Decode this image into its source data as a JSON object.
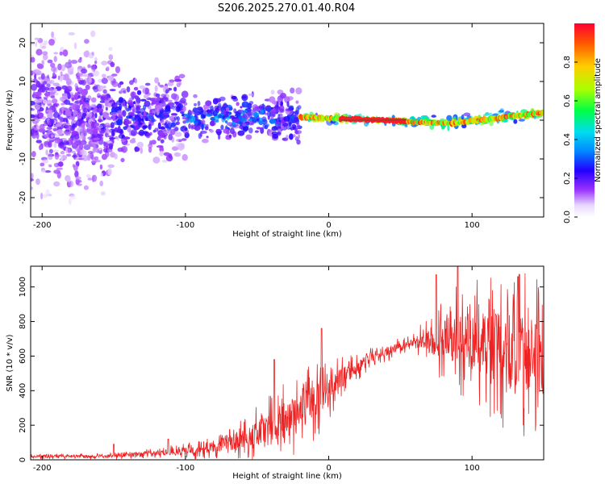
{
  "title": "S206.2025.270.01.40.R04",
  "chart_data": [
    {
      "type": "heatmap",
      "name": "spectrogram",
      "xlabel": "Height of straight line (km)",
      "ylabel": "Frequency (Hz)",
      "xlim": [
        -208,
        150
      ],
      "ylim": [
        -25,
        25
      ],
      "xticks": [
        -200,
        -100,
        0,
        100
      ],
      "yticks": [
        -20,
        -10,
        0,
        10,
        20
      ],
      "colorbar": {
        "label": "Normalized spectral amplitude",
        "range": [
          0,
          1
        ],
        "ticks": [
          "0.0",
          "0.2",
          "0.4",
          "0.6",
          "0.8"
        ],
        "colors": [
          "#ffffff",
          "#d9bfff",
          "#8c1aff",
          "#0000ff",
          "#00ccff",
          "#00ff66",
          "#ccff00",
          "#ff9900",
          "#ff0000"
        ]
      },
      "bands": [
        {
          "x": [
            -208,
            -150
          ],
          "spread_hz": 25,
          "amplitude": 0.2
        },
        {
          "x": [
            -150,
            -100
          ],
          "spread_hz": 14,
          "amplitude": 0.25
        },
        {
          "x": [
            -100,
            -40
          ],
          "spread_hz": 7,
          "amplitude": 0.35
        },
        {
          "x": [
            -40,
            -20
          ],
          "spread_hz": 9,
          "amplitude": 0.3
        },
        {
          "x": [
            -20,
            60
          ],
          "spread_hz": 1.5,
          "amplitude": 0.9
        },
        {
          "x": [
            60,
            150
          ],
          "spread_hz": 2,
          "amplitude": 0.8
        }
      ],
      "ridge_hz": [
        {
          "x": -20,
          "f": 0.8
        },
        {
          "x": 0,
          "f": 0.5
        },
        {
          "x": 40,
          "f": 0.0
        },
        {
          "x": 60,
          "f": -0.5
        },
        {
          "x": 85,
          "f": -0.8
        },
        {
          "x": 110,
          "f": 0.2
        },
        {
          "x": 150,
          "f": 2.0
        }
      ]
    },
    {
      "type": "line",
      "name": "snr",
      "xlabel": "Height of straight line (km)",
      "ylabel": "SNR (10 * v/v)",
      "xlim": [
        -208,
        150
      ],
      "ylim": [
        0,
        1120
      ],
      "xticks": [
        -200,
        -100,
        0,
        100
      ],
      "yticks": [
        0,
        200,
        400,
        600,
        800,
        1000
      ],
      "color": "#ee2222",
      "trend": [
        {
          "x": -208,
          "base": 20,
          "noise": 15
        },
        {
          "x": -150,
          "base": 20,
          "noise": 20
        },
        {
          "x": -120,
          "base": 40,
          "noise": 30
        },
        {
          "x": -90,
          "base": 60,
          "noise": 60
        },
        {
          "x": -60,
          "base": 120,
          "noise": 120
        },
        {
          "x": -30,
          "base": 230,
          "noise": 230
        },
        {
          "x": -10,
          "base": 330,
          "noise": 230
        },
        {
          "x": 10,
          "base": 480,
          "noise": 120
        },
        {
          "x": 30,
          "base": 600,
          "noise": 60
        },
        {
          "x": 60,
          "base": 680,
          "noise": 60
        },
        {
          "x": 80,
          "base": 700,
          "noise": 250
        },
        {
          "x": 100,
          "base": 700,
          "noise": 380
        },
        {
          "x": 130,
          "base": 620,
          "noise": 500
        },
        {
          "x": 150,
          "base": 600,
          "noise": 450
        }
      ],
      "peaks": [
        {
          "x": -150,
          "y": 90
        },
        {
          "x": -112,
          "y": 120
        },
        {
          "x": -38,
          "y": 580
        },
        {
          "x": -5,
          "y": 760
        },
        {
          "x": 90,
          "y": 1120
        },
        {
          "x": 75,
          "y": 1070
        },
        {
          "x": 132,
          "y": 1060
        }
      ]
    }
  ]
}
